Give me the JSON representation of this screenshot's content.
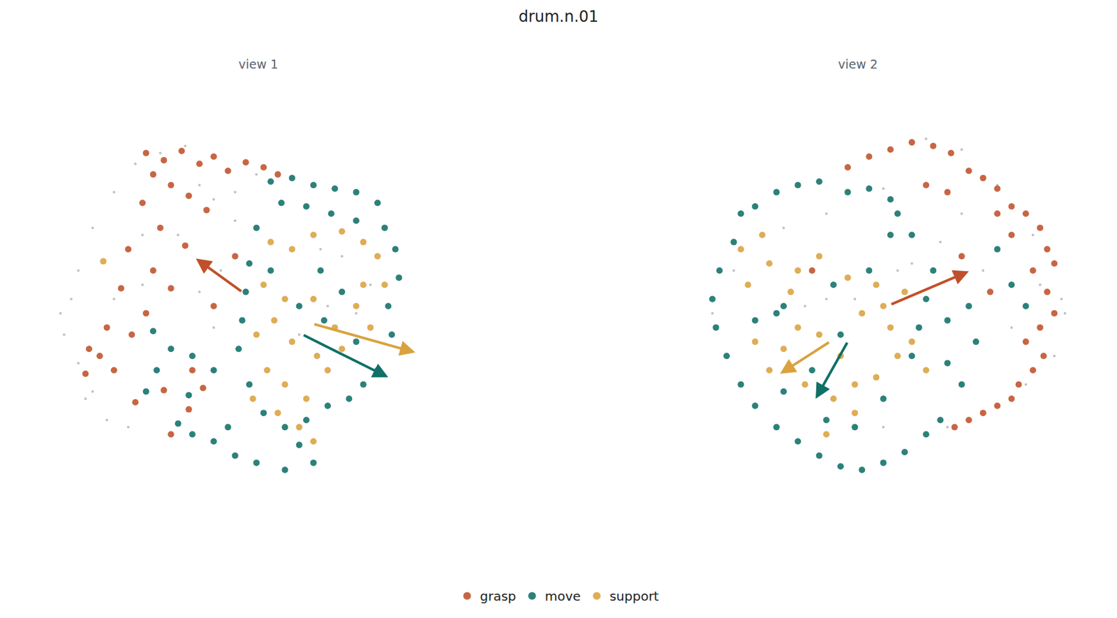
{
  "chart_data": {
    "type": "scatter",
    "title": "drum.n.01",
    "legend": "bottom",
    "tick_labels": false,
    "grid": false,
    "panels": [
      {
        "title": "view 1",
        "xlim": [
          40,
          690
        ],
        "ylim": [
          720,
          150
        ],
        "series": [
          {
            "color": "#8a8a9a",
            "marker": "dot",
            "x": [
              85,
              90,
              110,
              130,
              160,
              190,
              120,
              180,
              150,
              300,
              330,
              450,
              480,
              520,
              100,
              110,
              200,
              250,
              280,
              330,
              225,
              260,
              360,
              160,
              200,
              420,
              460,
              300,
              280,
              310,
              500,
              130
            ],
            "y": [
              440,
              470,
              380,
              320,
              270,
              230,
              560,
              600,
              590,
              280,
              310,
              350,
              360,
              400,
              420,
              510,
              330,
              330,
              260,
              270,
              215,
              205,
              245,
              420,
              400,
              470,
              430,
              460,
              410,
              380,
              440,
              550
            ]
          },
          {
            "name": "grasp",
            "color": "#c0502a",
            "marker": "circle",
            "x": [
              205,
              230,
              255,
              280,
              300,
              320,
              345,
              370,
              390,
              215,
              240,
              265,
              290,
              200,
              225,
              260,
              180,
              215,
              240,
              170,
              205,
              150,
              185,
              125,
              160,
              120,
              140,
              190,
              230,
              265,
              285,
              240,
              300,
              330,
              270
            ],
            "y": [
              215,
              225,
              212,
              230,
              220,
              240,
              228,
              235,
              245,
              245,
              260,
              275,
              295,
              285,
              320,
              345,
              350,
              380,
              405,
              405,
              440,
              460,
              470,
              490,
              520,
              525,
              500,
              565,
              548,
              575,
              545,
              610,
              430,
              360,
              520
            ]
          },
          {
            "name": "move",
            "color": "#0f7068",
            "marker": "circle",
            "x": [
              380,
              410,
              440,
              470,
              500,
              530,
              395,
              430,
              465,
              500,
              540,
              555,
              560,
              545,
              550,
              530,
              360,
              350,
              345,
              340,
              335,
              350,
              370,
              400,
              430,
              460,
              490,
              510,
              300,
              330,
              360,
              400,
              440,
              270,
              250,
              215,
              240,
              270,
              300,
              220,
              205,
              265,
              455,
              480,
              420,
              450,
              500,
              380,
              320,
              420
            ],
            "y": [
              255,
              250,
              260,
              265,
              270,
              285,
              285,
              290,
              300,
              310,
              320,
              350,
              390,
              430,
              470,
              520,
              320,
              370,
              410,
              450,
              490,
              540,
              580,
              600,
              590,
              570,
              560,
              540,
              620,
              640,
              650,
              660,
              650,
              610,
              595,
              465,
              490,
              500,
              520,
              520,
              550,
              555,
              450,
              410,
              430,
              380,
              480,
              380,
              600,
              625
            ]
          },
          {
            "name": "support",
            "color": "#d9a23e",
            "marker": "circle",
            "x": [
              380,
              410,
              440,
              480,
              510,
              530,
              370,
              400,
              440,
              470,
              510,
              540,
              385,
              410,
              445,
              480,
              520,
              375,
              400,
              430,
              460,
              390,
              420,
              440,
              360,
              500,
              355,
              145
            ],
            "y": [
              340,
              350,
              330,
              325,
              340,
              360,
              400,
              420,
              420,
              460,
              400,
              400,
              450,
              480,
              500,
              490,
              460,
              520,
              540,
              560,
              520,
              580,
              600,
              620,
              470,
              430,
              560,
              367
            ]
          }
        ],
        "arrows": [
          {
            "series": "grasp",
            "from": [
              340,
              410
            ],
            "to": [
              275,
              363
            ]
          },
          {
            "series": "move",
            "from": [
              425,
              470
            ],
            "to": [
              545,
              530
            ]
          },
          {
            "series": "support",
            "from": [
              440,
              455
            ],
            "to": [
              583,
              495
            ]
          }
        ]
      },
      {
        "title": "view 2",
        "xlim": [
          880,
          1530
        ],
        "ylim": [
          720,
          150
        ],
        "series": [
          {
            "color": "#8a8a9a",
            "marker": "dot",
            "x": [
              1490,
              1495,
              1450,
              1400,
              1350,
              1300,
              1480,
              1440,
              1330,
              1240,
              1160,
              1100,
              1030,
              1160,
              1200,
              1280,
              1320,
              1380,
              1420,
              1240,
              1000,
              1350,
              1260,
              1130,
              1460
            ],
            "y": [
              420,
              440,
              330,
              260,
              210,
              195,
              500,
              540,
              600,
              265,
              300,
              320,
              380,
              420,
              420,
              370,
              340,
              380,
              460,
              600,
              440,
              300,
              380,
              430,
              400
            ]
          },
          {
            "name": "grasp",
            "color": "#c0502a",
            "marker": "circle",
            "x": [
              1190,
              1220,
              1250,
              1280,
              1310,
              1335,
              1360,
              1380,
              1400,
              1420,
              1440,
              1460,
              1470,
              1480,
              1450,
              1470,
              1480,
              1460,
              1440,
              1465,
              1450,
              1430,
              1420,
              1400,
              1380,
              1360,
              1340,
              1400,
              1420,
              1390,
              1300,
              1330,
              1140,
              1350
            ],
            "y": [
              235,
              220,
              210,
              200,
              205,
              215,
              240,
              250,
              265,
              290,
              300,
              320,
              350,
              370,
              380,
              410,
              440,
              460,
              480,
              500,
              520,
              540,
              560,
              570,
              580,
              590,
              600,
              300,
              330,
              410,
              260,
              270,
              380,
              360
            ]
          },
          {
            "name": "move",
            "color": "#0f7068",
            "marker": "circle",
            "x": [
              1040,
              1060,
              1090,
              1120,
              1150,
              1190,
              1220,
              1250,
              1030,
              1010,
              1000,
              1005,
              1020,
              1040,
              1060,
              1090,
              1120,
              1150,
              1180,
              1210,
              1240,
              1270,
              1300,
              1320,
              1100,
              1090,
              1140,
              1180,
              1250,
              1280,
              1310,
              1300,
              1330,
              1360,
              1420,
              1400,
              1370,
              1330,
              1280,
              1240,
              1200,
              1160,
              1100,
              1060,
              1170,
              1220,
              1290,
              1440,
              1350,
              1260
            ],
            "y": [
              300,
              290,
              270,
              260,
              255,
              270,
              265,
              280,
              340,
              380,
              420,
              460,
              500,
              540,
              570,
              600,
              620,
              640,
              655,
              660,
              650,
              635,
              610,
              590,
              430,
              440,
              520,
              470,
              330,
              330,
              380,
              420,
              450,
              430,
              400,
              350,
              480,
              510,
              500,
              560,
              600,
              590,
              550,
              450,
              400,
              380,
              460,
              430,
              540,
              300
            ]
          },
          {
            "name": "support",
            "color": "#d9a23e",
            "marker": "circle",
            "x": [
              1040,
              1070,
              1080,
              1050,
              1120,
              1150,
              1190,
              1230,
              1210,
              1250,
              1280,
              1300,
              1180,
              1150,
              1120,
              1100,
              1130,
              1170,
              1200,
              1230,
              1260,
              1060,
              1080,
              1160,
              1200,
              1240,
              1270,
              1110
            ],
            "y": [
              350,
              330,
              370,
              400,
              380,
              360,
              390,
              400,
              440,
              460,
              480,
              520,
              500,
              470,
              460,
              490,
              540,
              560,
              580,
              530,
              500,
              480,
              520,
              610,
              540,
              430,
              410,
              410
            ]
          }
        ],
        "arrows": [
          {
            "series": "grasp",
            "from": [
              1250,
              428
            ],
            "to": [
              1360,
              381
            ]
          },
          {
            "series": "move",
            "from": [
              1190,
              480
            ],
            "to": [
              1145,
              560
            ]
          },
          {
            "series": "support",
            "from": [
              1165,
              480
            ],
            "to": [
              1095,
              525
            ]
          }
        ]
      }
    ]
  }
}
